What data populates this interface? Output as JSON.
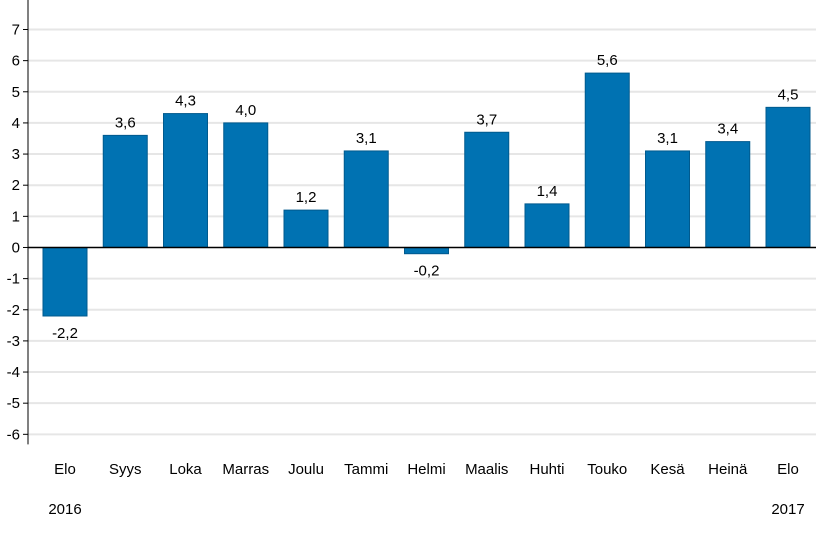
{
  "chart_data": {
    "type": "bar",
    "categories": [
      "Elo",
      "Syys",
      "Loka",
      "Marras",
      "Joulu",
      "Tammi",
      "Helmi",
      "Maalis",
      "Huhti",
      "Touko",
      "Kesä",
      "Heinä",
      "Elo"
    ],
    "values": [
      -2.2,
      3.6,
      4.3,
      4.0,
      1.2,
      3.1,
      -0.2,
      3.7,
      1.4,
      5.6,
      3.1,
      3.4,
      4.5
    ],
    "value_labels": [
      "-2,2",
      "3,6",
      "4,3",
      "4,0",
      "1,2",
      "3,1",
      "-0,2",
      "3,7",
      "1,4",
      "5,6",
      "3,1",
      "3,4",
      "4,5"
    ],
    "year_labels": [
      {
        "text": "2016",
        "category_index": 0
      },
      {
        "text": "2017",
        "category_index": 12
      }
    ],
    "y_ticks": [
      7,
      6,
      5,
      4,
      3,
      2,
      1,
      0,
      -1,
      -2,
      -3,
      -4,
      -5,
      -6
    ],
    "y_tick_labels": [
      "7",
      "6",
      "5",
      "4",
      "3",
      "2",
      "1",
      "0",
      "-1",
      "-2",
      "-3",
      "-4",
      "-5",
      "-6"
    ],
    "ylim": [
      -6,
      7
    ],
    "title": "",
    "xlabel": "",
    "ylabel": "",
    "grid": true,
    "colors": {
      "bar": "#0072b2",
      "grid": "#e6e6e6",
      "axis": "#000000",
      "zero_line": "#000000"
    }
  }
}
